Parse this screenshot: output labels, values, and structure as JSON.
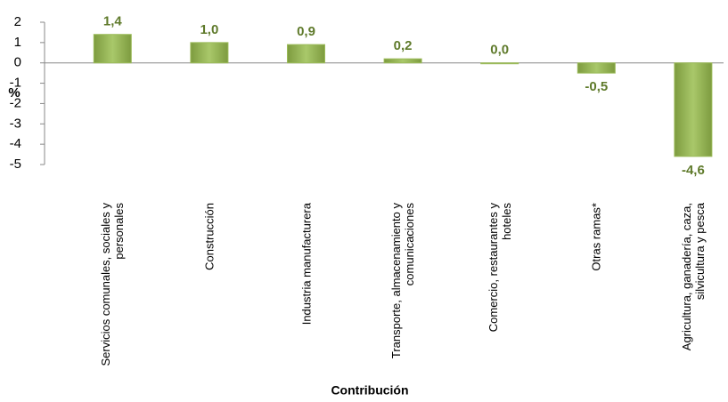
{
  "chart_data": {
    "type": "bar",
    "y_label": "%",
    "x_label": "Contribución",
    "categories": [
      "Servicios comunales, sociales y personales",
      "Construcción",
      "Industria manufacturera",
      "Transporte, almacenamiento y comunicaciones",
      "Comercio, restaurantes y hoteles",
      "Otras ramas*",
      "Agricultura, ganadería, caza, silvicultura y pesca"
    ],
    "values": [
      1.4,
      1.0,
      0.9,
      0.2,
      0.0,
      -0.5,
      -4.6
    ],
    "value_labels": [
      "1,4",
      "1,0",
      "0,9",
      "0,2",
      "0,0",
      "-0,5",
      "-4,6"
    ],
    "color": "#9bbb59",
    "label_color": "#5f7a2b",
    "ylim": [
      -5,
      2
    ],
    "yticks": [
      2,
      1,
      0,
      -1,
      -2,
      -3,
      -4,
      -5
    ],
    "grid": false
  }
}
